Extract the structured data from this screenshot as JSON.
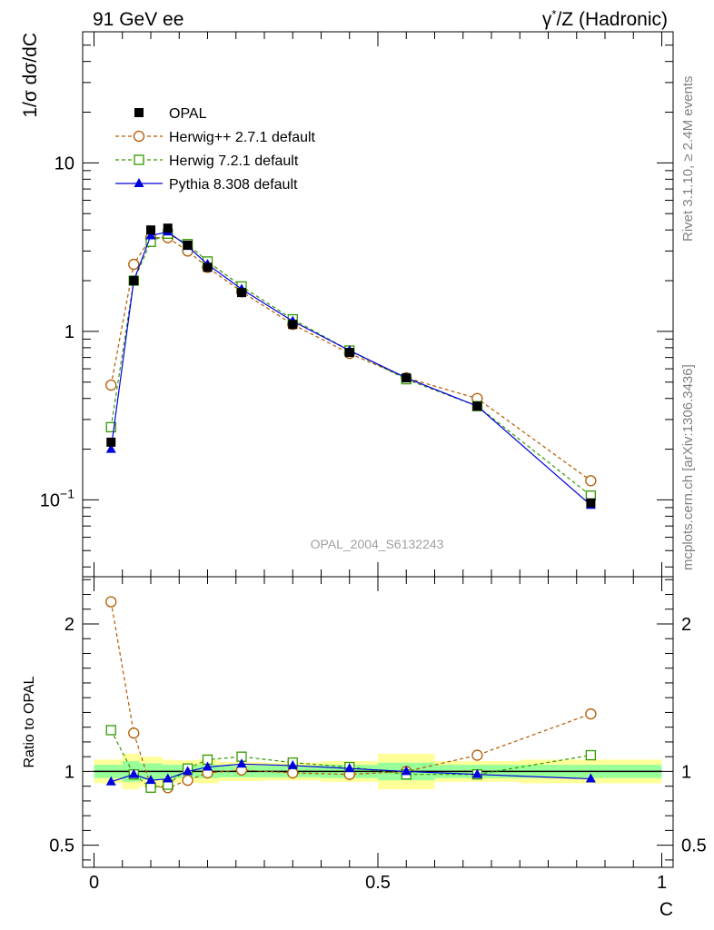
{
  "header": {
    "left": "91 GeV ee",
    "right_prefix": "γ",
    "right_sup": "*",
    "right_suffix": "/Z (Hadronic)"
  },
  "side_text": {
    "rivet": "Rivet 3.1.10, ≥ 2.4M events",
    "mcplots": "mcplots.cern.ch [arXiv:1306.3436]"
  },
  "watermark": "OPAL_2004_S6132243",
  "colors": {
    "data": "#000000",
    "herwigpp": "#b35900",
    "herwig7": "#339900",
    "pythia": "#0000dd",
    "band_inner": "#99ff99",
    "band_outer": "#ffff99"
  },
  "chart_data": [
    {
      "type": "scatter",
      "panel": "main",
      "ylabel": "1/σ dσ/dC",
      "yscale": "log",
      "ylim": [
        0.035,
        60
      ],
      "xlim": [
        -0.02,
        1.02
      ],
      "y_tick_labels": [
        {
          "value": 10,
          "label": "10"
        },
        {
          "value": 1,
          "label": "1"
        },
        {
          "value": 0.1,
          "label": "10",
          "sup": "−1"
        }
      ],
      "legend_position": "top-left",
      "x": [
        0.03,
        0.07,
        0.1,
        0.13,
        0.165,
        0.2,
        0.26,
        0.35,
        0.45,
        0.55,
        0.675,
        0.875
      ],
      "series": [
        {
          "name": "OPAL",
          "key": "data",
          "marker": "filled-square",
          "line": "none",
          "values": [
            0.22,
            2.0,
            4.0,
            4.1,
            3.25,
            2.4,
            1.7,
            1.1,
            0.75,
            0.53,
            0.36,
            0.096
          ]
        },
        {
          "name": "Herwig++ 2.7.1 default",
          "key": "herwigpp",
          "marker": "open-circle",
          "line": "dashed",
          "values": [
            0.48,
            2.5,
            3.6,
            3.6,
            3.0,
            2.4,
            1.72,
            1.1,
            0.74,
            0.53,
            0.4,
            0.13
          ]
        },
        {
          "name": "Herwig 7.2.1 default",
          "key": "herwig7",
          "marker": "open-square",
          "line": "dashed",
          "values": [
            0.27,
            2.0,
            3.4,
            3.8,
            3.3,
            2.6,
            1.85,
            1.18,
            0.77,
            0.52,
            0.36,
            0.106
          ]
        },
        {
          "name": "Pythia 8.308 default",
          "key": "pythia",
          "marker": "filled-triangle",
          "line": "solid",
          "values": [
            0.2,
            2.0,
            3.7,
            3.9,
            3.2,
            2.5,
            1.78,
            1.15,
            0.77,
            0.53,
            0.36,
            0.093
          ]
        }
      ]
    },
    {
      "type": "scatter",
      "panel": "ratio",
      "ylabel": "Ratio to OPAL",
      "xlabel": "C",
      "ylim": [
        0.35,
        2.32
      ],
      "xlim": [
        -0.02,
        1.02
      ],
      "y_ticks": [
        2,
        1,
        0.5
      ],
      "y_tick_labels": [
        "2",
        "1",
        "0.5"
      ],
      "x_ticks": [
        0,
        0.5,
        1
      ],
      "x_tick_labels": [
        "0",
        "0.5",
        "1"
      ],
      "reference_line": 1,
      "band": [
        {
          "x0": 0.0,
          "x1": 0.05,
          "inner": [
            0.955,
            1.045
          ],
          "outer": [
            0.92,
            1.08
          ]
        },
        {
          "x0": 0.05,
          "x1": 0.08,
          "inner": [
            0.93,
            1.07
          ],
          "outer": [
            0.88,
            1.12
          ]
        },
        {
          "x0": 0.08,
          "x1": 0.12,
          "inner": [
            0.945,
            1.055
          ],
          "outer": [
            0.9,
            1.1
          ]
        },
        {
          "x0": 0.12,
          "x1": 0.14,
          "inner": [
            0.955,
            1.045
          ],
          "outer": [
            0.92,
            1.08
          ]
        },
        {
          "x0": 0.14,
          "x1": 0.18,
          "inner": [
            0.955,
            1.045
          ],
          "outer": [
            0.925,
            1.075
          ]
        },
        {
          "x0": 0.18,
          "x1": 0.22,
          "inner": [
            0.955,
            1.045
          ],
          "outer": [
            0.92,
            1.08
          ]
        },
        {
          "x0": 0.22,
          "x1": 0.3,
          "inner": [
            0.96,
            1.04
          ],
          "outer": [
            0.935,
            1.065
          ]
        },
        {
          "x0": 0.3,
          "x1": 0.4,
          "inner": [
            0.96,
            1.04
          ],
          "outer": [
            0.94,
            1.06
          ]
        },
        {
          "x0": 0.4,
          "x1": 0.5,
          "inner": [
            0.955,
            1.045
          ],
          "outer": [
            0.93,
            1.07
          ]
        },
        {
          "x0": 0.5,
          "x1": 0.6,
          "inner": [
            0.94,
            1.06
          ],
          "outer": [
            0.88,
            1.12
          ]
        },
        {
          "x0": 0.6,
          "x1": 0.75,
          "inner": [
            0.955,
            1.045
          ],
          "outer": [
            0.93,
            1.07
          ]
        },
        {
          "x0": 0.75,
          "x1": 1.0,
          "inner": [
            0.955,
            1.045
          ],
          "outer": [
            0.92,
            1.08
          ]
        }
      ],
      "x": [
        0.03,
        0.07,
        0.1,
        0.13,
        0.165,
        0.2,
        0.26,
        0.35,
        0.45,
        0.55,
        0.675,
        0.875
      ],
      "series": [
        {
          "name": "Herwig++ 2.7.1 default",
          "key": "herwigpp",
          "marker": "open-circle",
          "line": "dashed",
          "values": [
            2.15,
            1.26,
            0.9,
            0.89,
            0.94,
            0.99,
            1.01,
            0.99,
            0.98,
            1.0,
            1.11,
            1.39
          ]
        },
        {
          "name": "Herwig 7.2.1 default",
          "key": "herwig7",
          "marker": "open-square",
          "line": "dashed",
          "values": [
            1.28,
            0.98,
            0.89,
            0.91,
            1.02,
            1.08,
            1.1,
            1.06,
            1.03,
            0.98,
            0.98,
            1.11
          ]
        },
        {
          "name": "Pythia 8.308 default",
          "key": "pythia",
          "marker": "filled-triangle",
          "line": "solid",
          "values": [
            0.93,
            0.98,
            0.94,
            0.95,
            1.0,
            1.03,
            1.05,
            1.04,
            1.02,
            1.0,
            0.98,
            0.95
          ]
        }
      ]
    }
  ]
}
